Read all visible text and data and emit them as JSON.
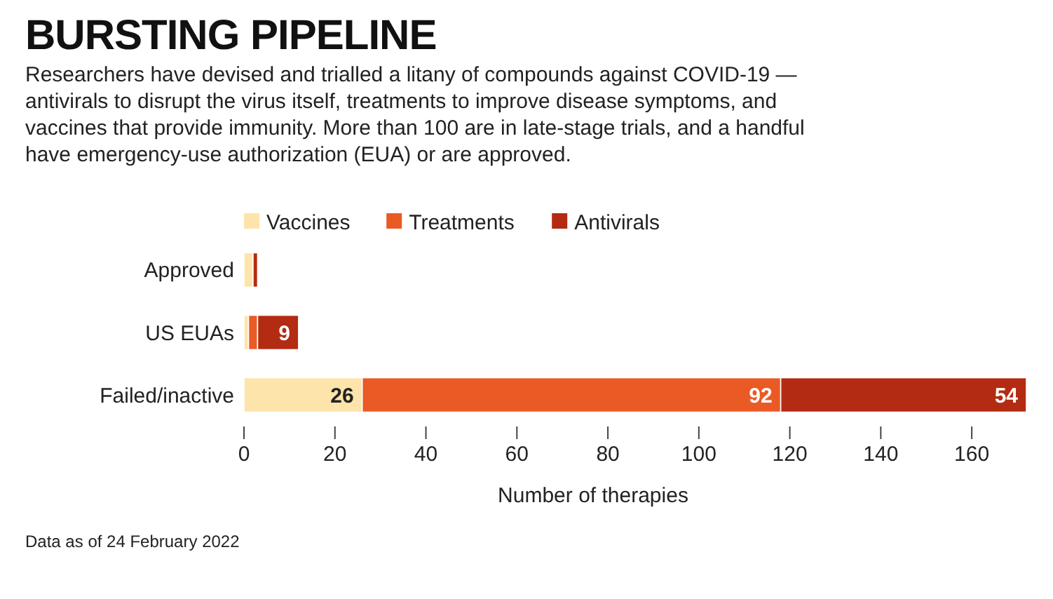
{
  "chart_data": {
    "type": "bar",
    "orientation": "horizontal",
    "stacked": true,
    "title": "BURSTING PIPELINE",
    "subtitle": "Researchers have devised and trialled a litany of compounds against COVID-19 — antivirals to disrupt the virus itself, treatments to improve disease symptoms, and vaccines that provide immunity. More than 100 are in late-stage trials, and a handful have emergency-use authorization (EUA) or are approved.",
    "xlabel": "Number of therapies",
    "categories": [
      "Approved",
      "US EUAs",
      "Failed/inactive"
    ],
    "series": [
      {
        "name": "Vaccines",
        "color": "#fde4aa",
        "values": [
          2,
          1,
          26
        ],
        "value_labels": [
          null,
          null,
          "26"
        ]
      },
      {
        "name": "Treatments",
        "color": "#ea5a24",
        "values": [
          0,
          2,
          92
        ],
        "value_labels": [
          null,
          null,
          "92"
        ]
      },
      {
        "name": "Antivirals",
        "color": "#b32b12",
        "values": [
          1,
          9,
          54
        ],
        "value_labels": [
          null,
          "9",
          "54"
        ]
      }
    ],
    "xlim": [
      0,
      172
    ],
    "xticks": [
      0,
      20,
      40,
      60,
      80,
      100,
      120,
      140,
      160
    ],
    "grid": false,
    "legend": "top",
    "annotations": [
      "Data as of 24 February 2022"
    ]
  }
}
